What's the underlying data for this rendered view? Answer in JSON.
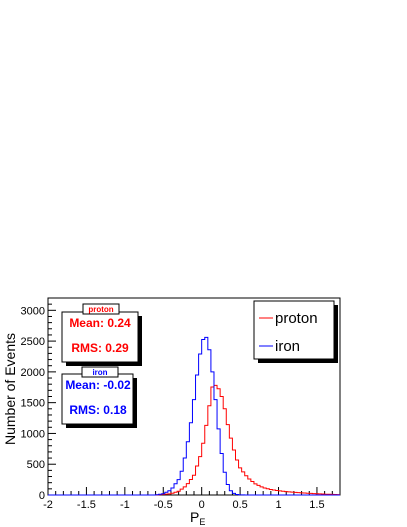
{
  "chart_data": {
    "type": "histogram",
    "xlabel": "P",
    "xlabel_sub": "E",
    "ylabel": "Number of Events",
    "xlim": [
      -2,
      1.8
    ],
    "ylim": [
      0,
      3200
    ],
    "x_ticks": [
      -2,
      -1.5,
      -1,
      -0.5,
      0,
      0.5,
      1,
      1.5
    ],
    "x_tick_labels": [
      "-2",
      "-1.5",
      "-1",
      "-0.5",
      "0",
      "0.5",
      "1",
      "1.5"
    ],
    "y_ticks": [
      0,
      500,
      1000,
      1500,
      2000,
      2500,
      3000
    ],
    "y_tick_labels": [
      "0",
      "500",
      "1000",
      "1500",
      "2000",
      "2500",
      "3000"
    ],
    "bin_width": 0.04,
    "legend_position": "top-right",
    "series": [
      {
        "name": "proton",
        "color": "#ff0000",
        "stats_title": "proton",
        "mean_text": "Mean: 0.24",
        "rms_text": "RMS: 0.29",
        "points": [
          [
            -0.6,
            0
          ],
          [
            -0.4,
            20
          ],
          [
            -0.3,
            60
          ],
          [
            -0.2,
            150
          ],
          [
            -0.1,
            320
          ],
          [
            0.0,
            700
          ],
          [
            0.05,
            1050
          ],
          [
            0.1,
            1450
          ],
          [
            0.12,
            1700
          ],
          [
            0.16,
            1810
          ],
          [
            0.2,
            1750
          ],
          [
            0.24,
            1700
          ],
          [
            0.3,
            1400
          ],
          [
            0.35,
            1080
          ],
          [
            0.4,
            820
          ],
          [
            0.45,
            600
          ],
          [
            0.5,
            440
          ],
          [
            0.6,
            280
          ],
          [
            0.7,
            180
          ],
          [
            0.8,
            120
          ],
          [
            0.9,
            90
          ],
          [
            1.0,
            70
          ],
          [
            1.1,
            55
          ],
          [
            1.2,
            45
          ],
          [
            1.3,
            35
          ],
          [
            1.4,
            28
          ],
          [
            1.5,
            20
          ],
          [
            1.6,
            14
          ],
          [
            1.7,
            10
          ],
          [
            1.8,
            6
          ]
        ]
      },
      {
        "name": "iron",
        "color": "#0000ff",
        "stats_title": "iron",
        "mean_text": "Mean: -0.02",
        "rms_text": "RMS: 0.18",
        "points": [
          [
            -0.6,
            0
          ],
          [
            -0.5,
            20
          ],
          [
            -0.4,
            80
          ],
          [
            -0.3,
            250
          ],
          [
            -0.25,
            420
          ],
          [
            -0.2,
            720
          ],
          [
            -0.15,
            1080
          ],
          [
            -0.1,
            1550
          ],
          [
            -0.05,
            2050
          ],
          [
            0.0,
            2450
          ],
          [
            0.04,
            2600
          ],
          [
            0.08,
            2520
          ],
          [
            0.12,
            2200
          ],
          [
            0.16,
            1800
          ],
          [
            0.2,
            1300
          ],
          [
            0.24,
            850
          ],
          [
            0.28,
            500
          ],
          [
            0.32,
            240
          ],
          [
            0.36,
            100
          ],
          [
            0.4,
            40
          ],
          [
            0.44,
            12
          ],
          [
            0.5,
            3
          ],
          [
            0.6,
            0
          ]
        ]
      }
    ]
  }
}
